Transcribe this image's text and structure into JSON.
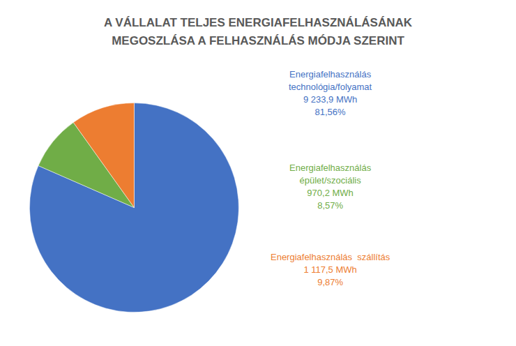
{
  "chart_data": {
    "type": "pie",
    "title": "A VÁLLALAT TELJES ENERGIAFELHASZNÁLÁSÁNAK\nMEGOSZLÁSA A FELHASZNÁLÁS MÓDJA SZERINT",
    "categories": [
      "Energiafelhasználás\ntechnológia/folyamat\n9 233,9 MWh",
      "Energiafelhasználás\népület/szociális\n970,2 MWh",
      "Energiafelhasználás  szállítás\n1 117,5 MWh"
    ],
    "values": [
      81.56,
      8.57,
      9.87
    ],
    "value_labels": [
      "81,56%",
      "8,57%",
      "9,87%"
    ],
    "colors": [
      "#4472C4",
      "#70AD47",
      "#ED7D31"
    ],
    "data_labels": true,
    "legend": false
  }
}
